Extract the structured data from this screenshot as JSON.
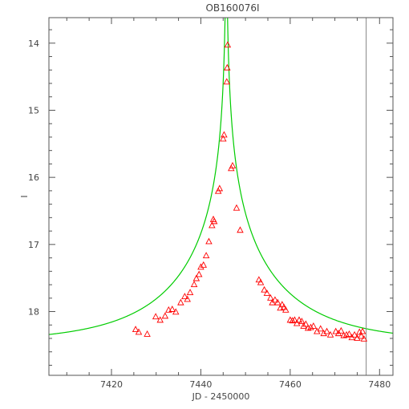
{
  "chart_data": {
    "type": "scatter",
    "title": "OB160076I",
    "xlabel": "JD - 2450000",
    "ylabel": "I",
    "xlim": [
      7406,
      7483
    ],
    "ylim": [
      18.95,
      13.62
    ],
    "y_inverted": true,
    "grid": false,
    "x_ticks": [
      7420,
      7440,
      7460,
      7480
    ],
    "y_ticks": [
      14,
      15,
      16,
      17,
      18
    ],
    "vertical_line_x": 7477,
    "colors": {
      "axes": "#555555",
      "model": "#00cc00",
      "points": "#ff0000",
      "vline": "#888888"
    },
    "series": [
      {
        "kind": "observations",
        "marker": "triangle-open",
        "x": [
          7425.4,
          7426.1,
          7428.0,
          7429.9,
          7430.9,
          7432.0,
          7432.8,
          7433.6,
          7434.4,
          7435.5,
          7436.4,
          7437.0,
          7437.6,
          7438.5,
          7439.0,
          7439.6,
          7440.0,
          7440.6,
          7441.2,
          7441.8,
          7442.5,
          7442.8,
          7443.0,
          7443.9,
          7444.2,
          7445.0,
          7445.2,
          7445.8,
          7445.9,
          7446.0,
          7446.8,
          7447.1,
          7448.0,
          7448.8,
          7453.0,
          7453.4,
          7454.2,
          7454.8,
          7455.6,
          7456.0,
          7456.6,
          7457.2,
          7457.8,
          7458.2,
          7458.6,
          7459.0,
          7460.0,
          7460.5,
          7461.0,
          7461.5,
          7462.0,
          7462.6,
          7463.0,
          7463.5,
          7464.0,
          7464.6,
          7465.2,
          7466.0,
          7466.8,
          7467.5,
          7468.2,
          7469.0,
          7470.2,
          7470.8,
          7471.4,
          7472.0,
          7472.6,
          7473.2,
          7473.8,
          7474.4,
          7475.0,
          7475.5,
          7475.9,
          7476.2,
          7476.5
        ],
        "y": [
          18.27,
          18.31,
          18.34,
          18.08,
          18.13,
          18.07,
          17.98,
          17.97,
          18.01,
          17.87,
          17.78,
          17.82,
          17.72,
          17.6,
          17.51,
          17.45,
          17.34,
          17.31,
          17.17,
          16.96,
          16.72,
          16.63,
          16.66,
          16.21,
          16.17,
          15.43,
          15.37,
          14.58,
          14.37,
          14.03,
          15.87,
          15.83,
          16.46,
          16.79,
          17.53,
          17.57,
          17.68,
          17.73,
          17.8,
          17.87,
          17.83,
          17.87,
          17.95,
          17.9,
          17.94,
          17.98,
          18.13,
          18.14,
          18.13,
          18.18,
          18.13,
          18.15,
          18.22,
          18.19,
          18.25,
          18.24,
          18.22,
          18.3,
          18.26,
          18.33,
          18.3,
          18.35,
          18.3,
          18.33,
          18.29,
          18.36,
          18.35,
          18.34,
          18.39,
          18.35,
          18.4,
          18.31,
          18.37,
          18.3,
          18.41
        ]
      },
      {
        "kind": "model",
        "style": "solid-line",
        "model": {
          "t0": 7445.7,
          "tE": 25.0,
          "u0": 0.003,
          "I_base": 18.46
        }
      }
    ]
  }
}
